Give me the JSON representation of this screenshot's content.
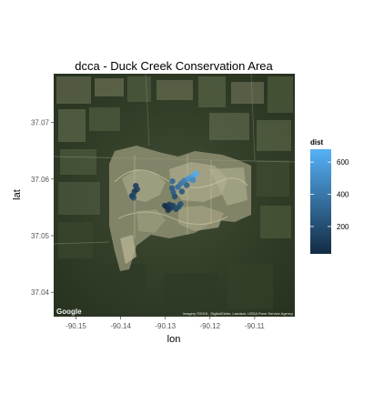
{
  "chart_data": {
    "type": "scatter",
    "title": "dcca - Duck Creek Conservation Area",
    "xlabel": "lon",
    "ylabel": "lat",
    "xlim": [
      -90.155,
      -90.101
    ],
    "ylim": [
      37.0357,
      37.0786
    ],
    "x_ticks": [
      -90.15,
      -90.14,
      -90.13,
      -90.12,
      -90.11
    ],
    "x_tick_labels": [
      "-90.15",
      "-90.14",
      "-90.13",
      "-90.12",
      "-90.11"
    ],
    "y_ticks": [
      37.04,
      37.05,
      37.06,
      37.07
    ],
    "y_tick_labels": [
      "37.04",
      "37.05",
      "37.06",
      "37.07"
    ],
    "legend": {
      "title": "dist",
      "position": "right",
      "min": 30,
      "max": 680,
      "breaks": [
        200,
        400,
        600
      ],
      "break_labels": [
        "200",
        "400",
        "600"
      ],
      "color_low": "#132B43",
      "color_high": "#56B1F7"
    },
    "background": "satellite map",
    "grid": false,
    "points": [
      {
        "x": -90.1366,
        "y": 37.0588,
        "dist": 120
      },
      {
        "x": -90.1363,
        "y": 37.0582,
        "dist": 150
      },
      {
        "x": -90.1369,
        "y": 37.0578,
        "dist": 90
      },
      {
        "x": -90.1372,
        "y": 37.0572,
        "dist": 180
      },
      {
        "x": -90.1371,
        "y": 37.0567,
        "dist": 210
      },
      {
        "x": -90.1375,
        "y": 37.057,
        "dist": 140
      },
      {
        "x": -90.1284,
        "y": 37.0596,
        "dist": 320
      },
      {
        "x": -90.1285,
        "y": 37.0584,
        "dist": 260
      },
      {
        "x": -90.1282,
        "y": 37.0577,
        "dist": 280
      },
      {
        "x": -90.1272,
        "y": 37.0586,
        "dist": 340
      },
      {
        "x": -90.1265,
        "y": 37.0592,
        "dist": 380
      },
      {
        "x": -90.1258,
        "y": 37.0597,
        "dist": 430
      },
      {
        "x": -90.1249,
        "y": 37.06,
        "dist": 520
      },
      {
        "x": -90.1243,
        "y": 37.0603,
        "dist": 560
      },
      {
        "x": -90.1236,
        "y": 37.0606,
        "dist": 610
      },
      {
        "x": -90.1231,
        "y": 37.061,
        "dist": 650
      },
      {
        "x": -90.1238,
        "y": 37.0598,
        "dist": 480
      },
      {
        "x": -90.1252,
        "y": 37.0589,
        "dist": 300
      },
      {
        "x": -90.1263,
        "y": 37.0578,
        "dist": 240
      },
      {
        "x": -90.1279,
        "y": 37.0569,
        "dist": 200
      },
      {
        "x": -90.1291,
        "y": 37.0555,
        "dist": 110
      },
      {
        "x": -90.1297,
        "y": 37.0551,
        "dist": 80
      },
      {
        "x": -90.1301,
        "y": 37.0553,
        "dist": 60
      },
      {
        "x": -90.1288,
        "y": 37.0549,
        "dist": 100
      },
      {
        "x": -90.1283,
        "y": 37.0553,
        "dist": 130
      },
      {
        "x": -90.1276,
        "y": 37.0547,
        "dist": 160
      },
      {
        "x": -90.127,
        "y": 37.0551,
        "dist": 190
      },
      {
        "x": -90.1266,
        "y": 37.0556,
        "dist": 220
      },
      {
        "x": -90.1294,
        "y": 37.0545,
        "dist": 70
      }
    ]
  },
  "map": {
    "logo_text": "Google",
    "attribution": "Imagery ©2015 , DigitalGlobe, Landsat, USDA Farm Service Agency"
  }
}
